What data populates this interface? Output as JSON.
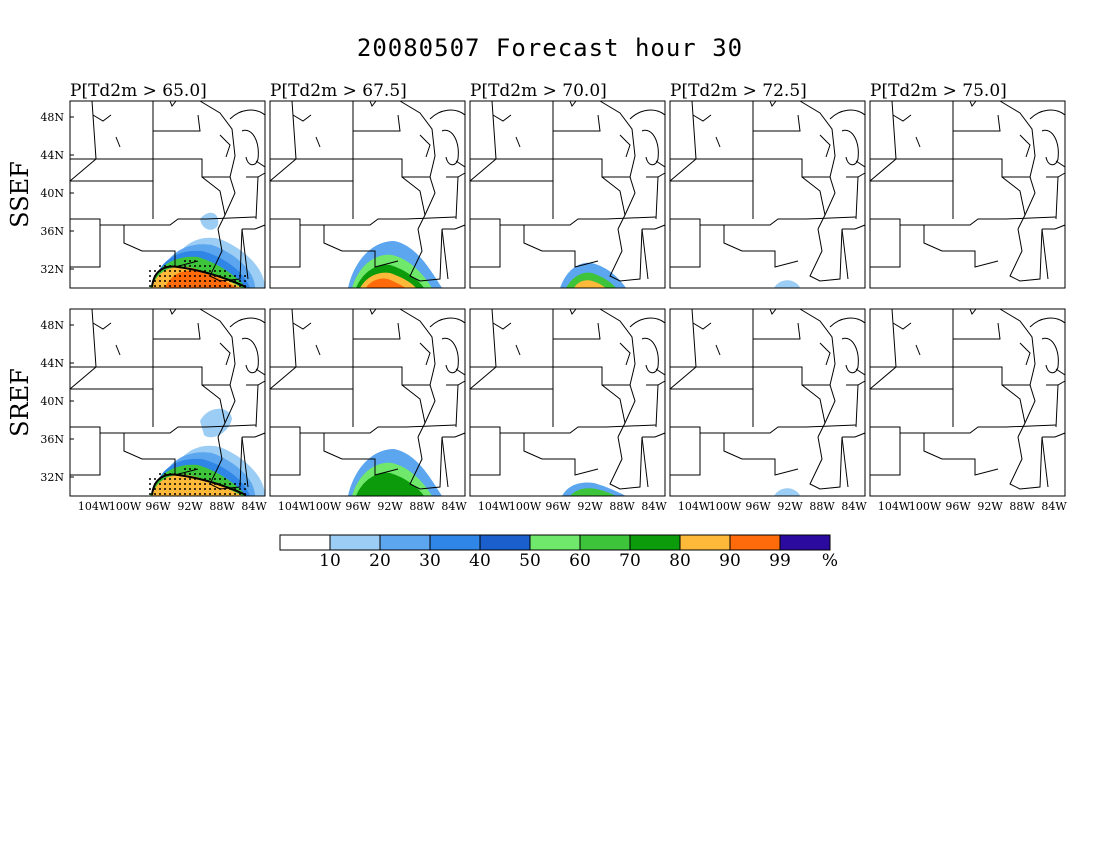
{
  "title": "20080507 Forecast hour 30",
  "panel_titles": [
    "P[Td2m > 65.0]",
    "P[Td2m > 67.5]",
    "P[Td2m > 70.0]",
    "P[Td2m > 72.5]",
    "P[Td2m > 75.0]"
  ],
  "row_labels": [
    "SSEF",
    "SREF"
  ],
  "lat_labels": [
    "48N",
    "44N",
    "40N",
    "36N",
    "32N"
  ],
  "lon_labels": [
    "104W",
    "100W",
    "96W",
    "92W",
    "88W",
    "84W"
  ],
  "legend": {
    "labels": [
      "10",
      "20",
      "30",
      "40",
      "50",
      "60",
      "70",
      "80",
      "90",
      "99",
      "%"
    ],
    "colors": [
      "#ffffff",
      "#9ccdf4",
      "#5ba6ee",
      "#2f86e6",
      "#1a5fcc",
      "#6fe86c",
      "#3ec43b",
      "#0b9b0b",
      "#ffb93a",
      "#ff6a0a",
      "#2b0aa0"
    ]
  },
  "colors": {
    "state_lines": "#000000",
    "stipple": "#000000"
  },
  "chart_data": {
    "type": "heatmap",
    "title": "20080507 Forecast hour 30",
    "rows": [
      "SSEF",
      "SREF"
    ],
    "columns": [
      "P[Td2m > 65.0]",
      "P[Td2m > 67.5]",
      "P[Td2m > 70.0]",
      "P[Td2m > 72.5]",
      "P[Td2m > 75.0]"
    ],
    "units": "%",
    "levels": [
      10,
      20,
      30,
      40,
      50,
      60,
      70,
      80,
      90,
      99
    ],
    "lat_range": [
      30,
      50
    ],
    "lon_range": [
      -107,
      -82
    ]
  }
}
